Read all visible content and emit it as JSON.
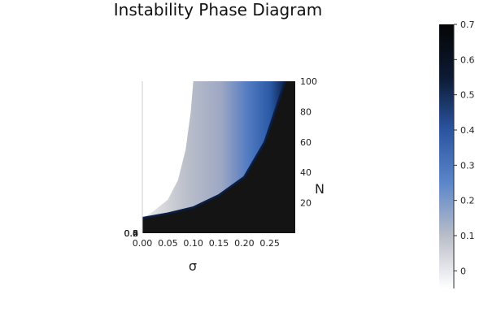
{
  "chart_data": {
    "type": "heatmap",
    "title": "Instability Phase Diagram",
    "xlabel": "σ",
    "ylabel": "N",
    "xlim": [
      0.0,
      0.3
    ],
    "ylim": [
      0,
      100
    ],
    "x_ticks": [
      "0.00",
      "0.05",
      "0.10",
      "0.15",
      "0.20",
      "0.25"
    ],
    "x_tick_values": [
      0.0,
      0.05,
      0.1,
      0.15,
      0.2,
      0.25
    ],
    "y_ticks": [
      "20",
      "40",
      "60",
      "80",
      "100"
    ],
    "y_tick_values": [
      20,
      40,
      60,
      80,
      100
    ],
    "y_overlap_ticks": [
      "0.0",
      "0.2",
      "0.4",
      "0.6",
      "0.8"
    ],
    "colorbar": {
      "range": [
        -0.05,
        0.7
      ],
      "ticks": [
        "0",
        "0.1",
        "0.2",
        "0.3",
        "0.4",
        "0.5",
        "0.6",
        "0.7"
      ],
      "tick_values": [
        0,
        0.1,
        0.2,
        0.3,
        0.4,
        0.5,
        0.6,
        0.7
      ],
      "colors": [
        "#ffffff",
        "#b9bdc8",
        "#5b86c9",
        "#2b54a0",
        "#0c1a33",
        "#050505"
      ]
    },
    "regions": {
      "stable_color": "#141414",
      "undefined_color": "#ffffff",
      "boundary": [
        {
          "sigma": 0.0,
          "N": 10
        },
        {
          "sigma": 0.05,
          "N": 13
        },
        {
          "sigma": 0.1,
          "N": 17
        },
        {
          "sigma": 0.15,
          "N": 25
        },
        {
          "sigma": 0.2,
          "N": 37
        },
        {
          "sigma": 0.24,
          "N": 60
        },
        {
          "sigma": 0.27,
          "N": 90
        },
        {
          "sigma": 0.28,
          "N": 100
        }
      ],
      "white_edge": [
        {
          "sigma": 0.0,
          "N": 10
        },
        {
          "sigma": 0.02,
          "N": 14
        },
        {
          "sigma": 0.05,
          "N": 22
        },
        {
          "sigma": 0.07,
          "N": 35
        },
        {
          "sigma": 0.085,
          "N": 55
        },
        {
          "sigma": 0.095,
          "N": 80
        },
        {
          "sigma": 0.1,
          "N": 100
        }
      ]
    }
  }
}
